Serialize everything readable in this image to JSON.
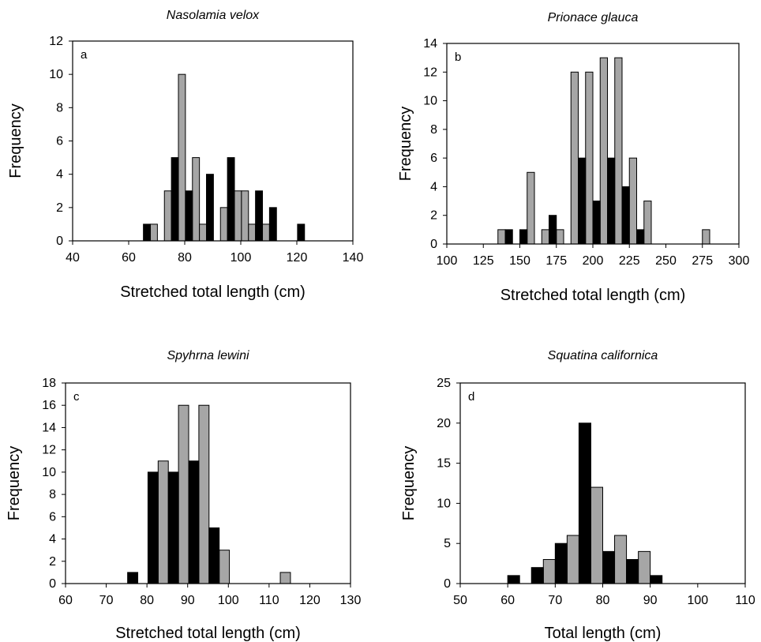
{
  "chart_data": [
    {
      "type": "bar",
      "panel": "a",
      "title": "Nasolamia velox",
      "xlabel": "Stretched total length (cm)",
      "ylabel": "Frequency",
      "xlim": [
        40,
        140
      ],
      "ylim": [
        0,
        12
      ],
      "xticks": [
        "40",
        "60",
        "80",
        "100",
        "120",
        "140"
      ],
      "yticks": [
        "0",
        "2",
        "4",
        "6",
        "8",
        "10",
        "12"
      ],
      "bin_width": 2.5,
      "series": [
        {
          "color": "#000000",
          "bins": [
            {
              "x": 66.5,
              "value": 1
            },
            {
              "x": 76.5,
              "value": 5
            },
            {
              "x": 81.5,
              "value": 3
            },
            {
              "x": 89,
              "value": 4
            },
            {
              "x": 96.5,
              "value": 5
            },
            {
              "x": 106.5,
              "value": 3
            },
            {
              "x": 111.5,
              "value": 2
            },
            {
              "x": 121.5,
              "value": 1
            }
          ]
        },
        {
          "color": "#a6a6a6",
          "bins": [
            {
              "x": 69,
              "value": 1
            },
            {
              "x": 74,
              "value": 3
            },
            {
              "x": 79,
              "value": 10
            },
            {
              "x": 84,
              "value": 5
            },
            {
              "x": 86.5,
              "value": 1
            },
            {
              "x": 94,
              "value": 2
            },
            {
              "x": 99,
              "value": 3
            },
            {
              "x": 101.5,
              "value": 3
            },
            {
              "x": 104,
              "value": 1
            },
            {
              "x": 109,
              "value": 1
            }
          ]
        }
      ]
    },
    {
      "type": "bar",
      "panel": "b",
      "title": "Prionace glauca",
      "xlabel": "Stretched total length (cm)",
      "ylabel": "Frequency",
      "xlim": [
        100,
        300
      ],
      "ylim": [
        0,
        14
      ],
      "xticks": [
        "100",
        "125",
        "150",
        "175",
        "200",
        "225",
        "250",
        "275",
        "300"
      ],
      "yticks": [
        "0",
        "2",
        "4",
        "6",
        "8",
        "10",
        "12",
        "14"
      ],
      "bin_width": 5,
      "series": [
        {
          "color": "#000000",
          "bins": [
            {
              "x": 142.5,
              "value": 1
            },
            {
              "x": 152.5,
              "value": 1
            },
            {
              "x": 172.5,
              "value": 2
            },
            {
              "x": 192.5,
              "value": 6
            },
            {
              "x": 202.5,
              "value": 3
            },
            {
              "x": 212.5,
              "value": 6
            },
            {
              "x": 222.5,
              "value": 4
            },
            {
              "x": 232.5,
              "value": 1
            }
          ]
        },
        {
          "color": "#a6a6a6",
          "bins": [
            {
              "x": 137.5,
              "value": 1
            },
            {
              "x": 157.5,
              "value": 5
            },
            {
              "x": 167.5,
              "value": 1
            },
            {
              "x": 177.5,
              "value": 1
            },
            {
              "x": 187.5,
              "value": 12
            },
            {
              "x": 197.5,
              "value": 12
            },
            {
              "x": 207.5,
              "value": 13
            },
            {
              "x": 217.5,
              "value": 13
            },
            {
              "x": 227.5,
              "value": 6
            },
            {
              "x": 237.5,
              "value": 3
            },
            {
              "x": 277.5,
              "value": 1
            }
          ]
        }
      ]
    },
    {
      "type": "bar",
      "panel": "c",
      "title": "Spyhrna lewini",
      "xlabel": "Stretched total length (cm)",
      "ylabel": "Frequency",
      "xlim": [
        60,
        130
      ],
      "ylim": [
        0,
        18
      ],
      "xticks": [
        "60",
        "70",
        "80",
        "90",
        "100",
        "110",
        "120",
        "130"
      ],
      "yticks": [
        "0",
        "2",
        "4",
        "6",
        "8",
        "10",
        "12",
        "14",
        "16",
        "18"
      ],
      "bin_width": 2.5,
      "series": [
        {
          "color": "#000000",
          "bins": [
            {
              "x": 76.5,
              "value": 1
            },
            {
              "x": 81.5,
              "value": 10
            },
            {
              "x": 86.5,
              "value": 10
            },
            {
              "x": 91.5,
              "value": 11
            },
            {
              "x": 96.5,
              "value": 5
            }
          ]
        },
        {
          "color": "#a6a6a6",
          "bins": [
            {
              "x": 84,
              "value": 11
            },
            {
              "x": 89,
              "value": 16
            },
            {
              "x": 94,
              "value": 16
            },
            {
              "x": 99,
              "value": 3
            },
            {
              "x": 114,
              "value": 1
            }
          ]
        }
      ]
    },
    {
      "type": "bar",
      "panel": "d",
      "title": "Squatina californica",
      "xlabel": "Total length (cm)",
      "ylabel": "Frequency",
      "xlim": [
        50,
        110
      ],
      "ylim": [
        0,
        25
      ],
      "xticks": [
        "50",
        "60",
        "70",
        "80",
        "90",
        "100",
        "110"
      ],
      "yticks": [
        "0",
        "5",
        "10",
        "15",
        "20",
        "25"
      ],
      "bin_width": 2.5,
      "series": [
        {
          "color": "#000000",
          "bins": [
            {
              "x": 61.25,
              "value": 1
            },
            {
              "x": 66.25,
              "value": 2
            },
            {
              "x": 71.25,
              "value": 5
            },
            {
              "x": 76.25,
              "value": 20
            },
            {
              "x": 81.25,
              "value": 4
            },
            {
              "x": 86.25,
              "value": 3
            },
            {
              "x": 91.25,
              "value": 1
            }
          ]
        },
        {
          "color": "#a6a6a6",
          "bins": [
            {
              "x": 68.75,
              "value": 3
            },
            {
              "x": 73.75,
              "value": 6
            },
            {
              "x": 78.75,
              "value": 12
            },
            {
              "x": 83.75,
              "value": 6
            },
            {
              "x": 88.75,
              "value": 4
            }
          ]
        }
      ]
    }
  ]
}
